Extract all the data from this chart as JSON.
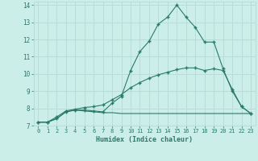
{
  "xlabel": "Humidex (Indice chaleur)",
  "background_color": "#cceee8",
  "grid_color": "#b8ddd8",
  "line_color": "#2a7a6a",
  "xlim": [
    -0.5,
    23.5
  ],
  "ylim": [
    7,
    14.2
  ],
  "yticks": [
    7,
    8,
    9,
    10,
    11,
    12,
    13,
    14
  ],
  "xticks": [
    0,
    1,
    2,
    3,
    4,
    5,
    6,
    7,
    8,
    9,
    10,
    11,
    12,
    13,
    14,
    15,
    16,
    17,
    18,
    19,
    20,
    21,
    22,
    23
  ],
  "series1_x": [
    0,
    1,
    2,
    3,
    4,
    5,
    6,
    7,
    8,
    9,
    10,
    11,
    12,
    13,
    14,
    15,
    16,
    17,
    18,
    19,
    20,
    21,
    22,
    23
  ],
  "series1_y": [
    7.2,
    7.2,
    7.4,
    7.8,
    7.9,
    7.9,
    7.85,
    7.8,
    8.3,
    8.7,
    10.2,
    11.3,
    11.9,
    12.9,
    13.3,
    14.0,
    13.3,
    12.7,
    11.85,
    11.85,
    10.3,
    9.0,
    8.1,
    7.7
  ],
  "series2_x": [
    0,
    1,
    2,
    3,
    4,
    5,
    6,
    7,
    8,
    9,
    10,
    11,
    12,
    13,
    14,
    15,
    16,
    17,
    18,
    19,
    20,
    21,
    22,
    23
  ],
  "series2_y": [
    7.2,
    7.2,
    7.5,
    7.85,
    7.95,
    8.05,
    8.1,
    8.2,
    8.5,
    8.8,
    9.2,
    9.5,
    9.75,
    9.95,
    10.1,
    10.25,
    10.35,
    10.35,
    10.2,
    10.3,
    10.2,
    9.1,
    8.1,
    7.7
  ],
  "series3_x": [
    0,
    1,
    2,
    3,
    4,
    5,
    6,
    7,
    8,
    9,
    10,
    11,
    12,
    13,
    14,
    15,
    16,
    17,
    18,
    19,
    20,
    21,
    22,
    23
  ],
  "series3_y": [
    7.2,
    7.2,
    7.4,
    7.8,
    7.9,
    7.85,
    7.8,
    7.75,
    7.75,
    7.7,
    7.7,
    7.7,
    7.7,
    7.7,
    7.7,
    7.7,
    7.7,
    7.7,
    7.7,
    7.7,
    7.7,
    7.7,
    7.7,
    7.7
  ]
}
